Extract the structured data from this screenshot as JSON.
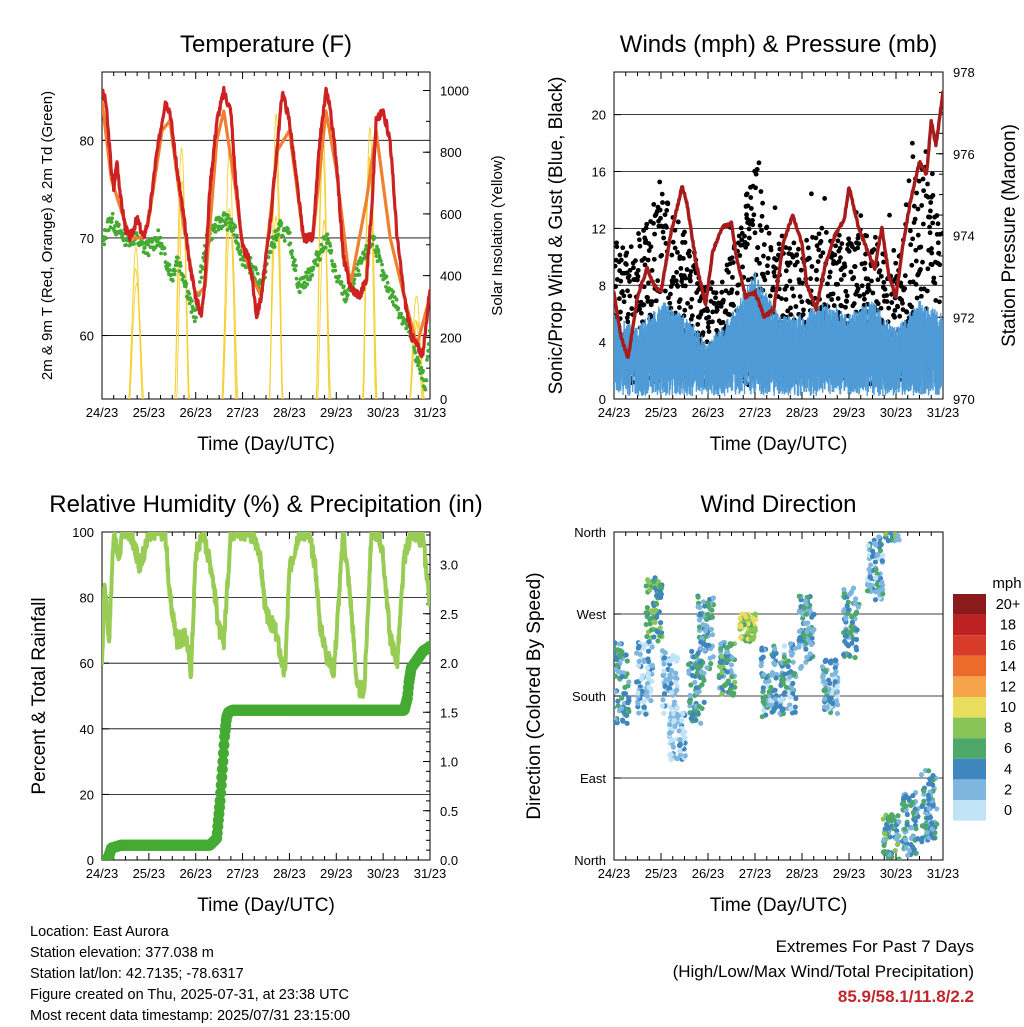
{
  "x_ticks": [
    "24/23",
    "25/23",
    "26/23",
    "27/23",
    "28/23",
    "29/23",
    "30/23",
    "31/23"
  ],
  "charts": {
    "temperature": {
      "title": "Temperature (F)",
      "xlabel": "Time (Day/UTC)",
      "ylabel": "2m & 9m T (Red, Orange) & 2m Td (Green)",
      "ylabel_right": "Solar Insolation (Yellow)"
    },
    "winds": {
      "title": "Winds (mph) & Pressure (mb)",
      "xlabel": "Time (Day/UTC)",
      "ylabel": "Sonic/Prop Wind & Gust (Blue, Black)",
      "ylabel_right": "Station Pressure (Maroon)"
    },
    "humidity": {
      "title": "Relative Humidity (%) & Precipitation (in)",
      "xlabel": "Time (Day/UTC)",
      "ylabel": "Percent & Total Rainfall"
    },
    "direction": {
      "title": "Wind Direction",
      "xlabel": "Time (Day/UTC)",
      "ylabel": "Direction (Colored By Speed)",
      "legend_title": "mph"
    }
  },
  "chart_data": [
    {
      "type": "line",
      "title": "Temperature (F)",
      "xlabel": "Time (Day/UTC)",
      "ylabel": "2m & 9m T (Red, Orange) & 2m Td (Green)",
      "ylabel_right": "Solar Insolation (Yellow)",
      "x_ticks": [
        "24/23",
        "25/23",
        "26/23",
        "27/23",
        "28/23",
        "29/23",
        "30/23",
        "31/23"
      ],
      "x_range_days": [
        0,
        7
      ],
      "ylim": [
        53.5,
        87
      ],
      "yticks": [
        60,
        70,
        80
      ],
      "ylim_right": [
        0,
        1060
      ],
      "yticks_right": [
        0,
        200,
        400,
        600,
        800,
        1000
      ],
      "gridlines_y": [
        60,
        70,
        80
      ],
      "series": [
        {
          "name": "2m T",
          "color": "#cc2222",
          "axis": "left",
          "x": [
            0,
            0.08,
            0.2,
            0.25,
            0.32,
            0.4,
            0.5,
            0.6,
            0.75,
            0.88,
            1.0,
            1.15,
            1.28,
            1.35,
            1.45,
            1.6,
            1.75,
            1.85,
            2.0,
            2.12,
            2.2,
            2.3,
            2.45,
            2.6,
            2.75,
            2.85,
            3.0,
            3.12,
            3.2,
            3.3,
            3.4,
            3.6,
            3.75,
            3.85,
            4.0,
            4.15,
            4.3,
            4.5,
            4.65,
            4.78,
            4.85,
            5.0,
            5.15,
            5.3,
            5.5,
            5.65,
            5.78,
            5.85,
            6.0,
            6.15,
            6.3,
            6.45,
            6.6,
            6.72,
            6.85,
            7.0
          ],
          "y": [
            85,
            84,
            77,
            75,
            78,
            74,
            71,
            70,
            72,
            70,
            72,
            78,
            82,
            84,
            83,
            77,
            72,
            68,
            64,
            62,
            66,
            75,
            82,
            85,
            83,
            76,
            69,
            68,
            66,
            62,
            64,
            72,
            80,
            85,
            82,
            76,
            70,
            70,
            80,
            85,
            84,
            78,
            68,
            65,
            64,
            66,
            75,
            82,
            83,
            80,
            70,
            64,
            60,
            59,
            58,
            65
          ]
        },
        {
          "name": "9m T",
          "color": "#f08030",
          "axis": "left",
          "x": [
            0,
            0.2,
            0.4,
            0.6,
            0.88,
            1.0,
            1.28,
            1.45,
            1.75,
            2.0,
            2.2,
            2.45,
            2.6,
            2.85,
            3.0,
            3.2,
            3.4,
            3.75,
            4.0,
            4.3,
            4.5,
            4.78,
            5.0,
            5.3,
            5.65,
            5.85,
            6.15,
            6.45,
            6.72,
            7.0
          ],
          "y": [
            84,
            76,
            73,
            70,
            70,
            72,
            81,
            82,
            71,
            64,
            65,
            80,
            83,
            75,
            69,
            66,
            64,
            79,
            81,
            70,
            70,
            83,
            77,
            65,
            74,
            81,
            70,
            64,
            59,
            64
          ]
        },
        {
          "name": "2m Td",
          "color": "#44aa33",
          "axis": "left",
          "x": [
            0,
            0.1,
            0.2,
            0.3,
            0.5,
            0.7,
            0.9,
            1.0,
            1.2,
            1.35,
            1.5,
            1.6,
            1.75,
            1.9,
            2.0,
            2.1,
            2.25,
            2.4,
            2.6,
            2.8,
            3.0,
            3.2,
            3.4,
            3.6,
            3.8,
            4.0,
            4.2,
            4.4,
            4.6,
            4.8,
            5.0,
            5.2,
            5.4,
            5.6,
            5.8,
            6.0,
            6.2,
            6.4,
            6.6,
            6.75,
            6.9,
            7.0
          ],
          "y": [
            69,
            71,
            72,
            71,
            70,
            70,
            69,
            69,
            70,
            68,
            66,
            68,
            66,
            63,
            62,
            66,
            70,
            71,
            72,
            71,
            68,
            67,
            65,
            69,
            71,
            70,
            65,
            66,
            68,
            70,
            66,
            64,
            66,
            68,
            70,
            66,
            64,
            62,
            60,
            57,
            55,
            60
          ]
        },
        {
          "name": "Solar Insolation",
          "color": "#f5d030",
          "axis": "right",
          "peaks_x": [
            0.72,
            1.72,
            2.72,
            3.72,
            4.72,
            5.72,
            6.72
          ],
          "peaks_y": [
            640,
            960,
            1020,
            930,
            990,
            930,
            340
          ]
        }
      ]
    },
    {
      "type": "scatter",
      "title": "Winds (mph) & Pressure (mb)",
      "xlabel": "Time (Day/UTC)",
      "ylabel": "Sonic/Prop Wind & Gust (Blue, Black)",
      "ylabel_right": "Station Pressure (Maroon)",
      "x_ticks": [
        "24/23",
        "25/23",
        "26/23",
        "27/23",
        "28/23",
        "29/23",
        "30/23",
        "31/23"
      ],
      "x_range_days": [
        0,
        7
      ],
      "ylim": [
        0,
        23
      ],
      "yticks": [
        0,
        4,
        8,
        12,
        16,
        20
      ],
      "ylim_right": [
        970,
        978
      ],
      "yticks_right": [
        970,
        972,
        974,
        976,
        978
      ],
      "gridlines_y": [
        4,
        8,
        12,
        16,
        20
      ],
      "series": [
        {
          "name": "Station Pressure",
          "color": "#a61c1c",
          "axis": "right",
          "x": [
            0,
            0.15,
            0.3,
            0.5,
            0.7,
            0.85,
            1.0,
            1.2,
            1.45,
            1.55,
            1.75,
            1.95,
            2.1,
            2.3,
            2.5,
            2.6,
            2.8,
            3.0,
            3.2,
            3.4,
            3.6,
            3.8,
            4.0,
            4.1,
            4.3,
            4.5,
            4.7,
            4.9,
            5.0,
            5.2,
            5.4,
            5.55,
            5.7,
            5.85,
            6.0,
            6.15,
            6.3,
            6.5,
            6.65,
            6.75,
            6.85,
            7.0
          ],
          "y": [
            972.6,
            971.5,
            971.0,
            972.5,
            973.2,
            972.8,
            972.6,
            974.0,
            975.2,
            974.8,
            973.3,
            972.3,
            973.6,
            974.2,
            974.3,
            973.5,
            972.5,
            972.6,
            972.0,
            972.2,
            973.8,
            974.5,
            973.8,
            972.8,
            972.2,
            973.3,
            974.0,
            974.4,
            975.2,
            974.2,
            973.6,
            973.2,
            974.2,
            973.0,
            972.5,
            973.8,
            974.8,
            975.8,
            975.5,
            976.8,
            976.2,
            977.5
          ]
        },
        {
          "name": "Sonic/Prop Wind",
          "color": "#4f9bd6",
          "axis": "left",
          "envelope_x": [
            0,
            0.5,
            1.0,
            1.5,
            2.0,
            2.5,
            3.0,
            3.5,
            4.0,
            4.5,
            5.0,
            5.5,
            6.0,
            6.5,
            7.0
          ],
          "envelope_y": [
            6,
            5,
            7,
            6,
            4,
            6,
            9,
            6,
            6,
            7,
            6,
            7,
            5,
            7,
            6
          ]
        },
        {
          "name": "Gust",
          "color": "#000000",
          "axis": "left",
          "envelope_x": [
            0,
            0.5,
            1.0,
            1.5,
            2.0,
            2.5,
            3.0,
            3.5,
            4.0,
            4.5,
            5.0,
            5.5,
            6.0,
            6.5,
            7.0
          ],
          "envelope_y": [
            11,
            11,
            15,
            12,
            8,
            10,
            17,
            11,
            11,
            12,
            11,
            12,
            9,
            18,
            12
          ]
        }
      ]
    },
    {
      "type": "line",
      "title": "Relative Humidity (%) & Precipitation (in)",
      "xlabel": "Time (Day/UTC)",
      "ylabel": "Percent & Total Rainfall",
      "x_ticks": [
        "24/23",
        "25/23",
        "26/23",
        "27/23",
        "28/23",
        "29/23",
        "30/23",
        "31/23"
      ],
      "x_range_days": [
        0,
        7
      ],
      "ylim": [
        0,
        100
      ],
      "yticks": [
        0,
        20,
        40,
        60,
        80,
        100
      ],
      "ylim_right": [
        0,
        3.33
      ],
      "yticks_right": [
        "0.0",
        "0.5",
        "1.0",
        "1.5",
        "2.0",
        "2.5",
        "3.0"
      ],
      "gridlines_y": [
        20,
        40,
        60,
        80
      ],
      "series": [
        {
          "name": "Relative Humidity",
          "color": "#99cc55",
          "axis": "left",
          "x": [
            0,
            0.05,
            0.15,
            0.25,
            0.35,
            0.45,
            0.6,
            0.8,
            0.95,
            1.0,
            1.2,
            1.35,
            1.45,
            1.6,
            1.8,
            1.9,
            2.0,
            2.15,
            2.35,
            2.5,
            2.6,
            2.75,
            2.9,
            3.0,
            3.15,
            3.35,
            3.5,
            3.7,
            3.9,
            4.0,
            4.2,
            4.4,
            4.55,
            4.65,
            4.8,
            4.95,
            5.0,
            5.15,
            5.3,
            5.45,
            5.6,
            5.75,
            5.9,
            6.0,
            6.15,
            6.3,
            6.45,
            6.6,
            6.75,
            6.85,
            7.0
          ],
          "y": [
            58,
            85,
            67,
            100,
            92,
            100,
            100,
            90,
            96,
            100,
            100,
            100,
            80,
            67,
            68,
            57,
            93,
            100,
            88,
            70,
            67,
            100,
            100,
            100,
            100,
            95,
            75,
            70,
            56,
            88,
            100,
            100,
            90,
            72,
            62,
            58,
            68,
            100,
            80,
            52,
            52,
            100,
            100,
            92,
            68,
            60,
            92,
            100,
            98,
            98,
            78
          ]
        },
        {
          "name": "Total Rainfall",
          "color": "#44aa33",
          "axis": "right",
          "x": [
            0,
            0.12,
            0.2,
            0.4,
            1.0,
            1.5,
            2.0,
            2.3,
            2.45,
            2.52,
            2.58,
            2.62,
            2.66,
            2.7,
            2.78,
            3.0,
            4.0,
            5.0,
            6.0,
            6.45,
            6.52,
            6.55,
            6.6,
            6.75,
            6.85,
            6.95,
            7.0
          ],
          "y": [
            0.0,
            0.0,
            0.12,
            0.15,
            0.15,
            0.15,
            0.15,
            0.15,
            0.22,
            0.6,
            1.0,
            1.28,
            1.45,
            1.5,
            1.52,
            1.52,
            1.52,
            1.52,
            1.52,
            1.52,
            1.65,
            1.8,
            1.95,
            2.05,
            2.12,
            2.15,
            2.17
          ]
        }
      ]
    },
    {
      "type": "scatter",
      "title": "Wind Direction",
      "xlabel": "Time (Day/UTC)",
      "ylabel": "Direction (Colored By Speed)",
      "x_ticks": [
        "24/23",
        "25/23",
        "26/23",
        "27/23",
        "28/23",
        "29/23",
        "30/23",
        "31/23"
      ],
      "x_range_days": [
        0,
        7
      ],
      "ylim": [
        0,
        360
      ],
      "ytick_labels": [
        "North",
        "East",
        "South",
        "West",
        "North"
      ],
      "ytick_values": [
        0,
        90,
        180,
        270,
        360
      ],
      "gridlines_y": [
        90,
        180,
        270
      ],
      "legend_title": "mph",
      "legend_levels": [
        "20+",
        "18",
        "16",
        "14",
        "12",
        "10",
        "8",
        "6",
        "4",
        "2",
        "0"
      ],
      "legend_colors": [
        "#8b1a1a",
        "#bd2222",
        "#d93b2b",
        "#ec6a2c",
        "#f5a44a",
        "#e8dd5e",
        "#88c556",
        "#4da86a",
        "#3f86bf",
        "#7fb6e0",
        "#c0e3f5"
      ],
      "clusters": [
        {
          "x_center": 0.15,
          "dir_center": 195,
          "spread": 45,
          "speed": 5
        },
        {
          "x_center": 0.65,
          "dir_center": 200,
          "spread": 40,
          "speed": 3
        },
        {
          "x_center": 0.85,
          "dir_center": 275,
          "spread": 35,
          "speed": 7
        },
        {
          "x_center": 1.2,
          "dir_center": 190,
          "spread": 40,
          "speed": 3
        },
        {
          "x_center": 1.35,
          "dir_center": 140,
          "spread": 30,
          "speed": 2
        },
        {
          "x_center": 1.75,
          "dir_center": 190,
          "spread": 40,
          "speed": 5
        },
        {
          "x_center": 1.95,
          "dir_center": 250,
          "spread": 40,
          "speed": 5
        },
        {
          "x_center": 2.4,
          "dir_center": 210,
          "spread": 30,
          "speed": 6
        },
        {
          "x_center": 2.85,
          "dir_center": 255,
          "spread": 15,
          "speed": 9
        },
        {
          "x_center": 3.3,
          "dir_center": 195,
          "spread": 40,
          "speed": 4
        },
        {
          "x_center": 3.7,
          "dir_center": 200,
          "spread": 40,
          "speed": 4
        },
        {
          "x_center": 4.1,
          "dir_center": 250,
          "spread": 40,
          "speed": 5
        },
        {
          "x_center": 4.6,
          "dir_center": 190,
          "spread": 30,
          "speed": 4
        },
        {
          "x_center": 5.05,
          "dir_center": 260,
          "spread": 40,
          "speed": 5
        },
        {
          "x_center": 5.55,
          "dir_center": 320,
          "spread": 35,
          "speed": 4
        },
        {
          "x_center": 5.9,
          "dir_center": 20,
          "spread": 30,
          "speed": 6
        },
        {
          "x_center": 6.3,
          "dir_center": 40,
          "spread": 35,
          "speed": 5
        },
        {
          "x_center": 6.7,
          "dir_center": 60,
          "spread": 40,
          "speed": 5
        }
      ]
    }
  ],
  "info": {
    "location": "Location: East Aurora",
    "elevation": "Station elevation: 377.038 m",
    "latlon": "Station lat/lon: 42.7135; -78.6317",
    "created": "Figure created on Thu, 2025-07-31, at 23:38 UTC",
    "timestamp": "Most recent data timestamp: 2025/07/31 23:15:00"
  },
  "extremes": {
    "title": "Extremes For Past 7 Days",
    "subtitle": "(High/Low/Max Wind/Total Precipitation)",
    "values": "85.9/58.1/11.8/2.2"
  }
}
